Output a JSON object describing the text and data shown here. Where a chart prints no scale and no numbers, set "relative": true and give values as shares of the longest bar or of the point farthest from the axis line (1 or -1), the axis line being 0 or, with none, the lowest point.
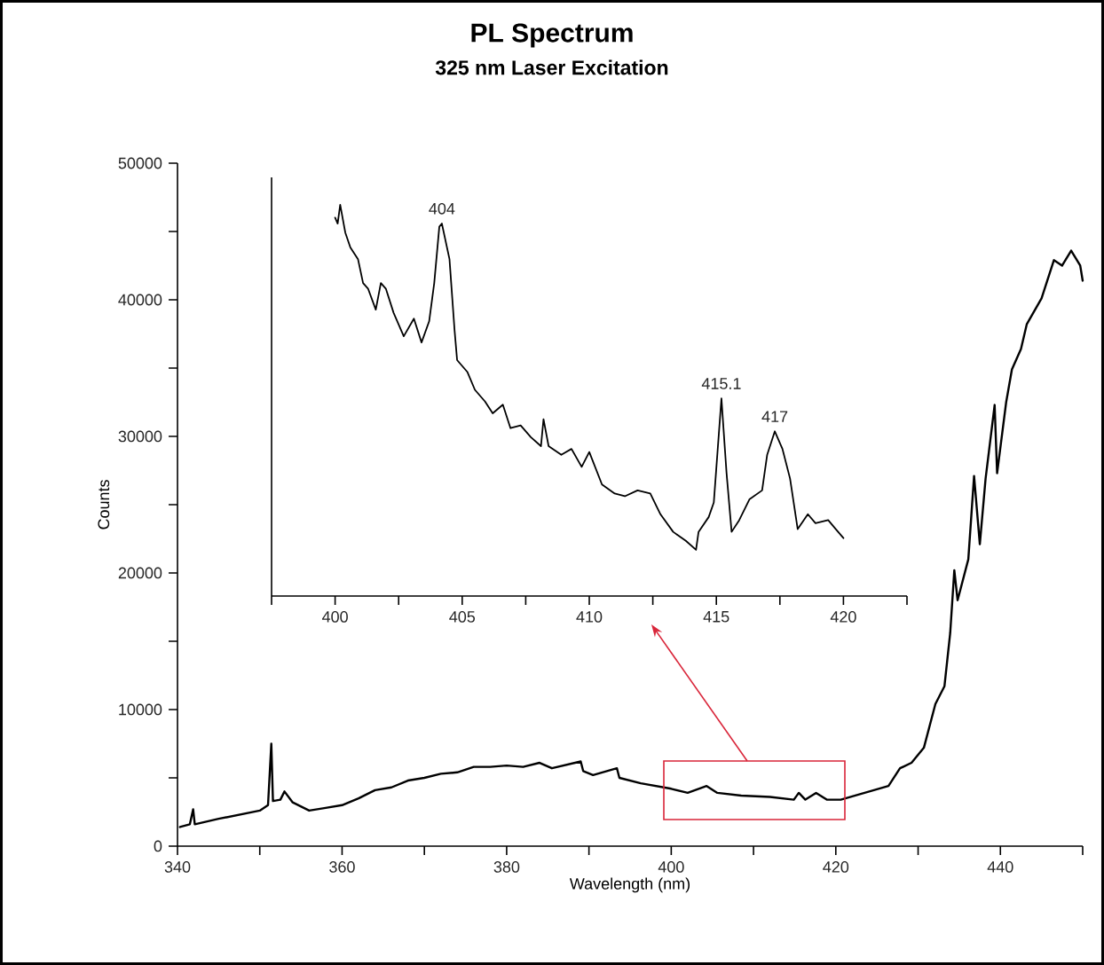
{
  "chart_data": [
    {
      "type": "line",
      "title": "PL Spectrum",
      "subtitle": "325 nm Laser Excitation",
      "xlabel": "Wavelength (nm)",
      "ylabel": "Counts",
      "color": "#000000",
      "xlim": [
        340,
        450
      ],
      "ylim": [
        0,
        50000
      ],
      "xticks": [
        340,
        {
          "value": 350,
          "label": null
        },
        360,
        {
          "value": 370,
          "label": null
        },
        380,
        {
          "value": 390,
          "label": null
        },
        400,
        {
          "value": 410,
          "label": null
        },
        420,
        {
          "value": 430,
          "label": null
        },
        440,
        {
          "value": 450,
          "label": null
        }
      ],
      "yticks": [
        0,
        {
          "value": 5000,
          "label": null
        },
        10000,
        {
          "value": 15000,
          "label": null
        },
        20000,
        {
          "value": 25000,
          "label": null
        },
        30000,
        {
          "value": 35000,
          "label": null
        },
        40000,
        {
          "value": 45000,
          "label": null
        },
        50000
      ],
      "x": [
        340.3,
        341.5,
        341.9,
        342.1,
        345,
        350,
        351,
        351.4,
        351.6,
        352.5,
        353,
        354,
        356,
        358,
        360,
        362,
        364,
        366,
        368,
        370,
        372,
        374,
        376,
        378,
        380,
        382,
        384,
        385.5,
        389,
        389.3,
        390.5,
        393.4,
        393.7,
        396.3,
        400,
        402,
        404.3,
        405.6,
        408.5,
        412,
        414.9,
        415.5,
        416.3,
        417.6,
        418.9,
        420.6,
        423.5,
        426.4,
        427.8,
        429.2,
        430.7,
        432.1,
        433.2,
        433.9,
        434.4,
        434.8,
        436.1,
        436.8,
        437.5,
        438.2,
        439.3,
        439.6,
        440.7,
        441.4,
        442.5,
        443.2,
        445,
        446.5,
        447.5,
        448.6,
        449.7,
        450
      ],
      "values": [
        1400,
        1600,
        2700,
        1600,
        2000,
        2600,
        3000,
        7500,
        3300,
        3400,
        4000,
        3200,
        2600,
        2800,
        3000,
        3500,
        4100,
        4300,
        4800,
        5000,
        5300,
        5400,
        5800,
        5800,
        5900,
        5800,
        6100,
        5700,
        6200,
        5500,
        5200,
        5700,
        5000,
        4600,
        4200,
        3900,
        4400,
        3900,
        3700,
        3600,
        3400,
        3900,
        3400,
        3900,
        3400,
        3400,
        3900,
        4400,
        5700,
        6100,
        7200,
        10400,
        11700,
        15600,
        20200,
        18000,
        21000,
        27100,
        22100,
        26900,
        32300,
        27300,
        32500,
        34900,
        36400,
        38200,
        40100,
        42900,
        42500,
        43600,
        42500,
        41400
      ]
    },
    {
      "type": "line",
      "relative": true,
      "color": "#000000",
      "xlim": [
        397.5,
        422.5
      ],
      "xticks": [
        {
          "value": 397.5,
          "label": null
        },
        400,
        {
          "value": 402.5,
          "label": null
        },
        405,
        {
          "value": 407.5,
          "label": null
        },
        410,
        {
          "value": 412.5,
          "label": null
        },
        415,
        {
          "value": 417.5,
          "label": null
        },
        420,
        {
          "value": 422.5,
          "label": null
        }
      ],
      "x": [
        400.0,
        400.1,
        400.2,
        400.4,
        400.6,
        400.9,
        401.1,
        401.3,
        401.6,
        401.8,
        402.0,
        402.3,
        402.7,
        403.1,
        403.4,
        403.7,
        403.9,
        404.1,
        404.2,
        404.5,
        404.7,
        404.8,
        405.2,
        405.5,
        405.9,
        406.2,
        406.6,
        406.9,
        407.3,
        407.7,
        408.1,
        408.2,
        408.4,
        408.9,
        409.3,
        409.7,
        410.0,
        410.5,
        411.0,
        411.4,
        411.9,
        412.4,
        412.8,
        413.3,
        413.8,
        414.2,
        414.3,
        414.7,
        414.9,
        415.2,
        415.4,
        415.6,
        415.9,
        416.3,
        416.8,
        417.0,
        417.3,
        417.6,
        417.9,
        418.2,
        418.6,
        418.9,
        419.4,
        419.7,
        420.0
      ],
      "values": [
        0.967,
        0.952,
        1.0,
        0.929,
        0.891,
        0.861,
        0.8,
        0.785,
        0.732,
        0.8,
        0.785,
        0.724,
        0.664,
        0.709,
        0.648,
        0.702,
        0.8,
        0.944,
        0.952,
        0.861,
        0.679,
        0.603,
        0.573,
        0.527,
        0.497,
        0.467,
        0.489,
        0.429,
        0.436,
        0.406,
        0.383,
        0.452,
        0.383,
        0.361,
        0.376,
        0.33,
        0.368,
        0.285,
        0.262,
        0.255,
        0.27,
        0.262,
        0.209,
        0.164,
        0.141,
        0.118,
        0.164,
        0.202,
        0.239,
        0.505,
        0.315,
        0.164,
        0.194,
        0.247,
        0.27,
        0.361,
        0.421,
        0.376,
        0.3,
        0.171,
        0.209,
        0.186,
        0.194,
        0.171,
        0.148
      ],
      "annotations": [
        {
          "text": "404",
          "x": 404.2,
          "y": 0.952
        },
        {
          "text": "415.1",
          "x": 415.2,
          "y": 0.505
        },
        {
          "text": "417",
          "x": 417.3,
          "y": 0.421
        }
      ]
    }
  ]
}
